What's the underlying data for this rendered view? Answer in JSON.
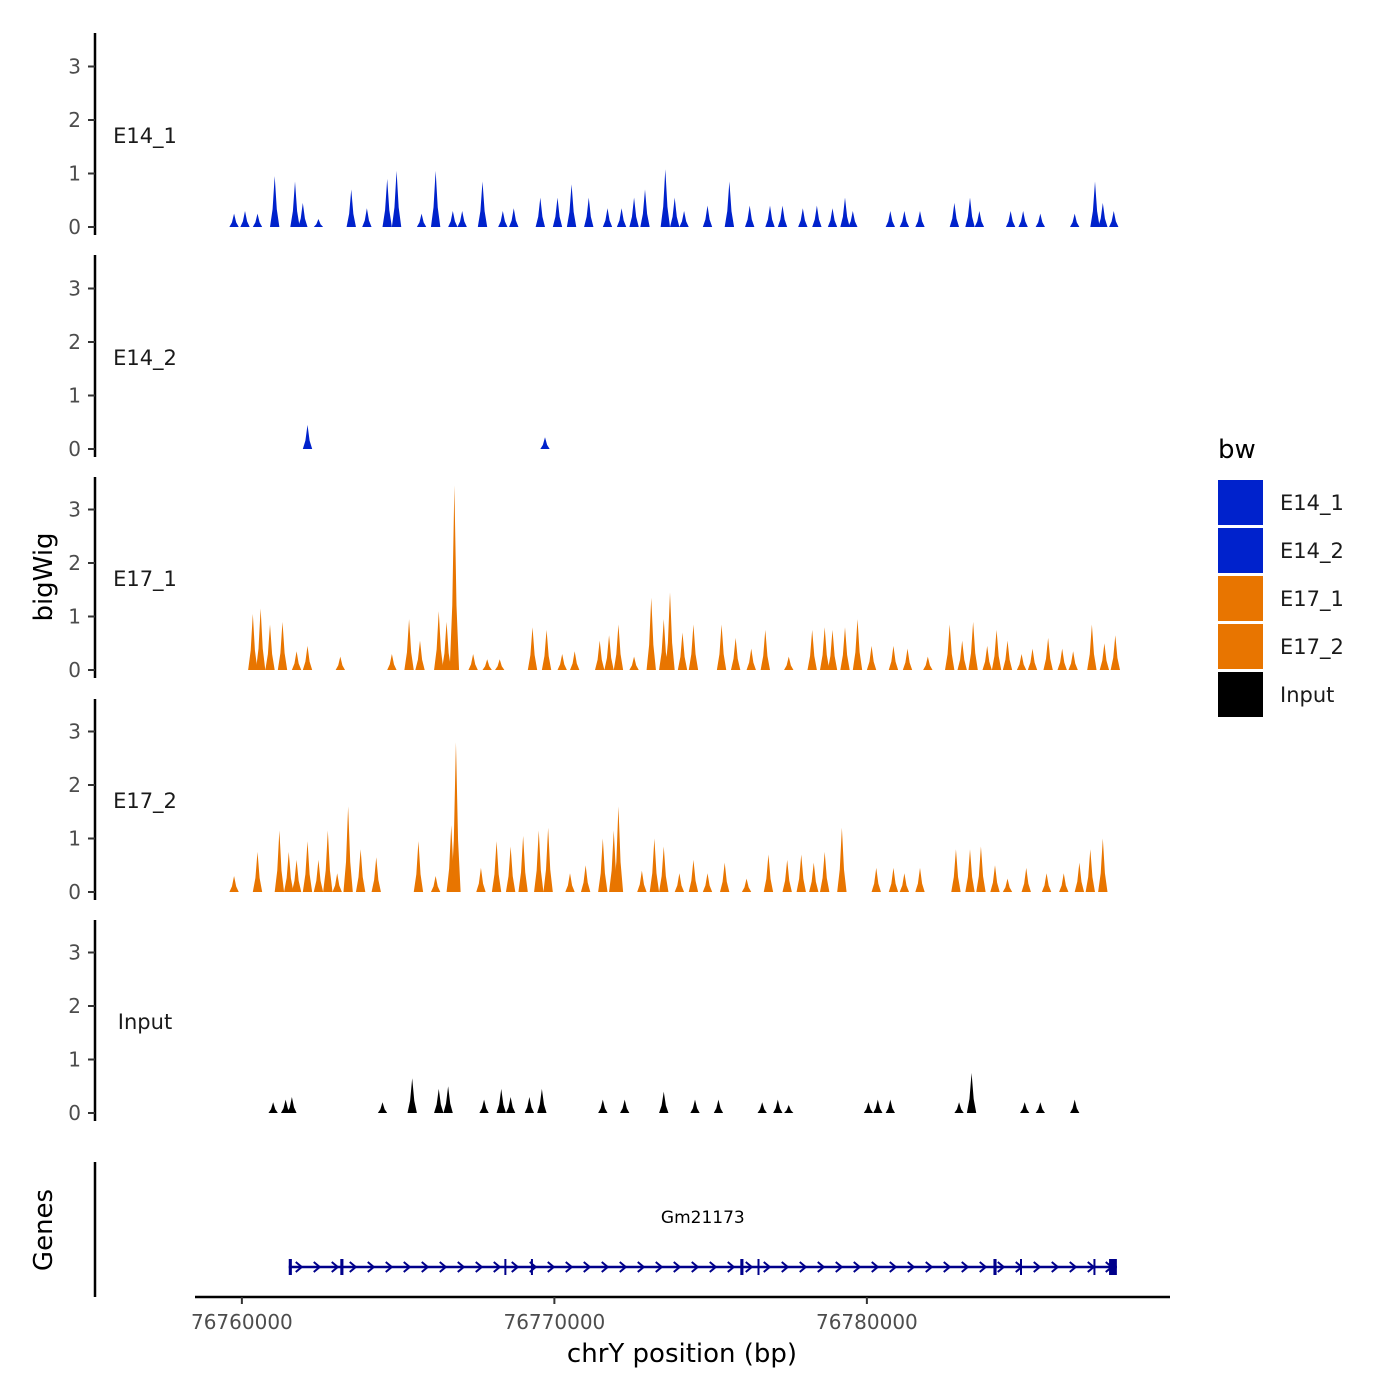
{
  "chart_data": {
    "type": "area",
    "title": "",
    "xlabel": "chrY position (bp)",
    "ylabel": "bigWig",
    "genes_panel_label": "Genes",
    "xlim": [
      76758500,
      76789700
    ],
    "x_ticks": [
      76760000,
      76770000,
      76780000
    ],
    "x_tick_labels": [
      "76760000",
      "76770000",
      "76780000"
    ],
    "ylim": [
      0,
      3.6
    ],
    "y_ticks": [
      0,
      1,
      2,
      3
    ],
    "y_tick_labels": [
      "0",
      "1",
      "2",
      "3"
    ],
    "legend": {
      "title": "bw",
      "position": "right",
      "entries": [
        {
          "label": "E14_1",
          "color": "#0022CC"
        },
        {
          "label": "E14_2",
          "color": "#0022CC"
        },
        {
          "label": "E17_1",
          "color": "#E87500"
        },
        {
          "label": "E17_2",
          "color": "#E87500"
        },
        {
          "label": "Input",
          "color": "#000000"
        }
      ]
    },
    "series": [
      {
        "name": "E14_1",
        "label": "E14_1",
        "color": "#0022CC",
        "peaks": [
          [
            76759750,
            0.25
          ],
          [
            76760100,
            0.3
          ],
          [
            76760500,
            0.25
          ],
          [
            76761050,
            0.95
          ],
          [
            76761700,
            0.85
          ],
          [
            76761950,
            0.45
          ],
          [
            76762450,
            0.15
          ],
          [
            76763500,
            0.7
          ],
          [
            76764000,
            0.35
          ],
          [
            76764650,
            0.9
          ],
          [
            76764950,
            1.05
          ],
          [
            76765750,
            0.25
          ],
          [
            76766200,
            1.05
          ],
          [
            76766750,
            0.3
          ],
          [
            76767050,
            0.3
          ],
          [
            76767700,
            0.85
          ],
          [
            76768350,
            0.3
          ],
          [
            76768700,
            0.35
          ],
          [
            76769550,
            0.55
          ],
          [
            76770100,
            0.55
          ],
          [
            76770550,
            0.8
          ],
          [
            76771100,
            0.55
          ],
          [
            76771700,
            0.35
          ],
          [
            76772150,
            0.35
          ],
          [
            76772550,
            0.55
          ],
          [
            76772900,
            0.7
          ],
          [
            76773550,
            1.08
          ],
          [
            76773850,
            0.55
          ],
          [
            76774150,
            0.3
          ],
          [
            76774900,
            0.4
          ],
          [
            76775600,
            0.85
          ],
          [
            76776250,
            0.4
          ],
          [
            76776900,
            0.4
          ],
          [
            76777300,
            0.4
          ],
          [
            76777950,
            0.35
          ],
          [
            76778400,
            0.4
          ],
          [
            76778900,
            0.35
          ],
          [
            76779300,
            0.55
          ],
          [
            76779550,
            0.3
          ],
          [
            76780750,
            0.3
          ],
          [
            76781200,
            0.3
          ],
          [
            76781700,
            0.3
          ],
          [
            76782800,
            0.45
          ],
          [
            76783300,
            0.55
          ],
          [
            76783600,
            0.3
          ],
          [
            76784600,
            0.3
          ],
          [
            76785000,
            0.3
          ],
          [
            76785550,
            0.25
          ],
          [
            76786650,
            0.25
          ],
          [
            76787300,
            0.85
          ],
          [
            76787550,
            0.45
          ],
          [
            76787900,
            0.3
          ]
        ]
      },
      {
        "name": "E14_2",
        "label": "E14_2",
        "color": "#0022CC",
        "peaks": [
          [
            76762100,
            0.45
          ],
          [
            76769700,
            0.22
          ]
        ]
      },
      {
        "name": "E17_1",
        "label": "E17_1",
        "color": "#E87500",
        "peaks": [
          [
            76760350,
            1.05
          ],
          [
            76760600,
            1.15
          ],
          [
            76760900,
            0.85
          ],
          [
            76761300,
            0.9
          ],
          [
            76761750,
            0.35
          ],
          [
            76762100,
            0.45
          ],
          [
            76763150,
            0.25
          ],
          [
            76764800,
            0.3
          ],
          [
            76765350,
            0.95
          ],
          [
            76765700,
            0.55
          ],
          [
            76766300,
            1.1
          ],
          [
            76766550,
            0.9
          ],
          [
            76766800,
            3.45
          ],
          [
            76767400,
            0.3
          ],
          [
            76767850,
            0.2
          ],
          [
            76768250,
            0.2
          ],
          [
            76769300,
            0.8
          ],
          [
            76769750,
            0.75
          ],
          [
            76770250,
            0.3
          ],
          [
            76770650,
            0.35
          ],
          [
            76771450,
            0.55
          ],
          [
            76771750,
            0.65
          ],
          [
            76772050,
            0.85
          ],
          [
            76772550,
            0.25
          ],
          [
            76773100,
            1.35
          ],
          [
            76773500,
            0.95
          ],
          [
            76773700,
            1.45
          ],
          [
            76774100,
            0.7
          ],
          [
            76774450,
            0.85
          ],
          [
            76775350,
            0.85
          ],
          [
            76775800,
            0.6
          ],
          [
            76776300,
            0.4
          ],
          [
            76776750,
            0.75
          ],
          [
            76777500,
            0.25
          ],
          [
            76778250,
            0.75
          ],
          [
            76778650,
            0.8
          ],
          [
            76778900,
            0.75
          ],
          [
            76779300,
            0.8
          ],
          [
            76779700,
            0.95
          ],
          [
            76780150,
            0.45
          ],
          [
            76780850,
            0.45
          ],
          [
            76781300,
            0.4
          ],
          [
            76781950,
            0.25
          ],
          [
            76782650,
            0.85
          ],
          [
            76783050,
            0.55
          ],
          [
            76783400,
            0.9
          ],
          [
            76783850,
            0.45
          ],
          [
            76784150,
            0.75
          ],
          [
            76784500,
            0.55
          ],
          [
            76784950,
            0.3
          ],
          [
            76785300,
            0.4
          ],
          [
            76785800,
            0.6
          ],
          [
            76786250,
            0.4
          ],
          [
            76786600,
            0.35
          ],
          [
            76787200,
            0.85
          ],
          [
            76787600,
            0.5
          ],
          [
            76787950,
            0.65
          ]
        ]
      },
      {
        "name": "E17_2",
        "label": "E17_2",
        "color": "#E87500",
        "peaks": [
          [
            76759750,
            0.3
          ],
          [
            76760500,
            0.75
          ],
          [
            76761200,
            1.15
          ],
          [
            76761500,
            0.75
          ],
          [
            76761750,
            0.6
          ],
          [
            76762100,
            0.95
          ],
          [
            76762450,
            0.6
          ],
          [
            76762750,
            1.15
          ],
          [
            76763050,
            0.35
          ],
          [
            76763400,
            1.6
          ],
          [
            76763800,
            0.8
          ],
          [
            76764300,
            0.65
          ],
          [
            76765650,
            0.95
          ],
          [
            76766200,
            0.3
          ],
          [
            76766700,
            1.25
          ],
          [
            76766850,
            2.8
          ],
          [
            76767650,
            0.45
          ],
          [
            76768150,
            0.95
          ],
          [
            76768600,
            0.85
          ],
          [
            76769000,
            1.05
          ],
          [
            76769500,
            1.15
          ],
          [
            76769800,
            1.2
          ],
          [
            76770500,
            0.35
          ],
          [
            76771000,
            0.5
          ],
          [
            76771550,
            1.0
          ],
          [
            76771900,
            1.15
          ],
          [
            76772050,
            1.6
          ],
          [
            76772800,
            0.4
          ],
          [
            76773200,
            1.0
          ],
          [
            76773500,
            0.85
          ],
          [
            76774000,
            0.35
          ],
          [
            76774450,
            0.6
          ],
          [
            76774900,
            0.35
          ],
          [
            76775450,
            0.55
          ],
          [
            76776150,
            0.25
          ],
          [
            76776850,
            0.7
          ],
          [
            76777450,
            0.6
          ],
          [
            76777900,
            0.7
          ],
          [
            76778300,
            0.55
          ],
          [
            76778650,
            0.75
          ],
          [
            76779200,
            1.2
          ],
          [
            76780300,
            0.45
          ],
          [
            76780850,
            0.45
          ],
          [
            76781200,
            0.35
          ],
          [
            76781700,
            0.45
          ],
          [
            76782850,
            0.8
          ],
          [
            76783300,
            0.8
          ],
          [
            76783650,
            0.85
          ],
          [
            76784100,
            0.5
          ],
          [
            76784500,
            0.25
          ],
          [
            76785100,
            0.45
          ],
          [
            76785750,
            0.35
          ],
          [
            76786300,
            0.35
          ],
          [
            76786800,
            0.55
          ],
          [
            76787150,
            0.8
          ],
          [
            76787550,
            1.0
          ]
        ]
      },
      {
        "name": "Input",
        "label": "Input",
        "color": "#000000",
        "peaks": [
          [
            76761000,
            0.2
          ],
          [
            76761400,
            0.25
          ],
          [
            76761600,
            0.3
          ],
          [
            76764500,
            0.2
          ],
          [
            76765450,
            0.65
          ],
          [
            76766300,
            0.45
          ],
          [
            76766600,
            0.5
          ],
          [
            76767750,
            0.25
          ],
          [
            76768300,
            0.45
          ],
          [
            76768600,
            0.3
          ],
          [
            76769200,
            0.3
          ],
          [
            76769600,
            0.45
          ],
          [
            76771550,
            0.25
          ],
          [
            76772250,
            0.25
          ],
          [
            76773500,
            0.4
          ],
          [
            76774500,
            0.25
          ],
          [
            76775250,
            0.25
          ],
          [
            76776650,
            0.2
          ],
          [
            76777150,
            0.25
          ],
          [
            76777500,
            0.15
          ],
          [
            76780050,
            0.2
          ],
          [
            76780350,
            0.25
          ],
          [
            76780750,
            0.25
          ],
          [
            76782950,
            0.2
          ],
          [
            76783350,
            0.75
          ],
          [
            76785050,
            0.2
          ],
          [
            76785550,
            0.2
          ],
          [
            76786650,
            0.25
          ]
        ]
      }
    ],
    "gene": {
      "name": "Gm21173",
      "start": 76761500,
      "end": 76788000,
      "strand": "+",
      "exons": [
        [
          76761500,
          76761600
        ],
        [
          76763150,
          76763250
        ],
        [
          76768400,
          76768450
        ],
        [
          76769250,
          76769300
        ],
        [
          76775950,
          76776050
        ],
        [
          76776500,
          76776550
        ],
        [
          76784050,
          76784150
        ],
        [
          76784900,
          76784950
        ],
        [
          76787250,
          76787300
        ],
        [
          76787750,
          76788000
        ]
      ]
    }
  }
}
